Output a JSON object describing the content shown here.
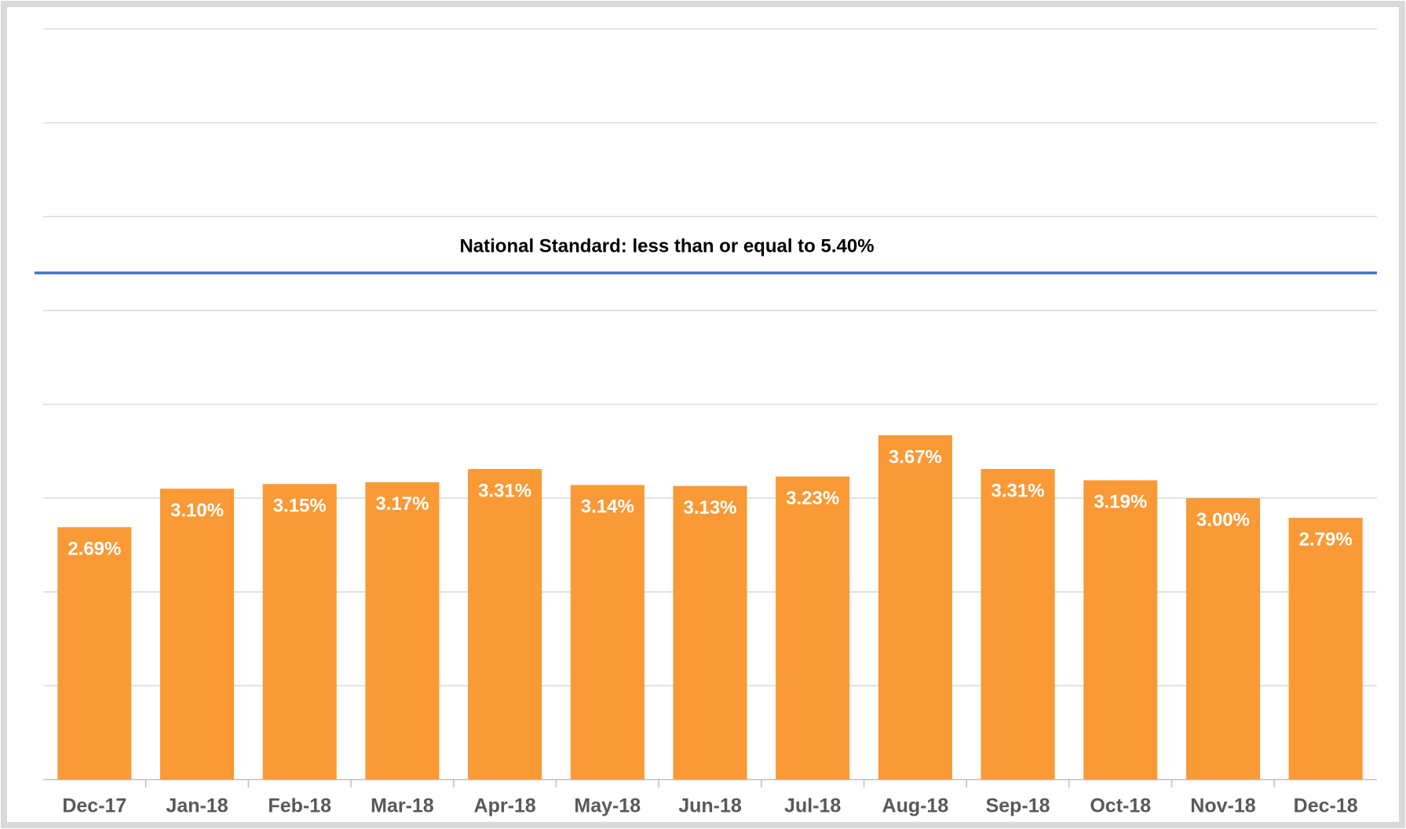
{
  "chart_data": {
    "type": "bar",
    "categories": [
      "Dec-17",
      "Jan-18",
      "Feb-18",
      "Mar-18",
      "Apr-18",
      "May-18",
      "Jun-18",
      "Jul-18",
      "Aug-18",
      "Sep-18",
      "Oct-18",
      "Nov-18",
      "Dec-18"
    ],
    "values": [
      2.69,
      3.1,
      3.15,
      3.17,
      3.31,
      3.14,
      3.13,
      3.23,
      3.67,
      3.31,
      3.19,
      3.0,
      2.79
    ],
    "value_labels": [
      "2.69%",
      "3.10%",
      "3.15%",
      "3.17%",
      "3.31%",
      "3.14%",
      "3.13%",
      "3.23%",
      "3.67%",
      "3.31%",
      "3.19%",
      "3.00%",
      "2.79%"
    ],
    "color": "#f99a36",
    "ylim": [
      0,
      8
    ],
    "yticks": [
      0,
      1,
      2,
      3,
      4,
      5,
      6,
      7,
      8
    ],
    "grid": true,
    "reference_line": {
      "value": 5.4,
      "label": "National Standard: less than or equal to 5.40%",
      "color": "#4472c4"
    }
  }
}
